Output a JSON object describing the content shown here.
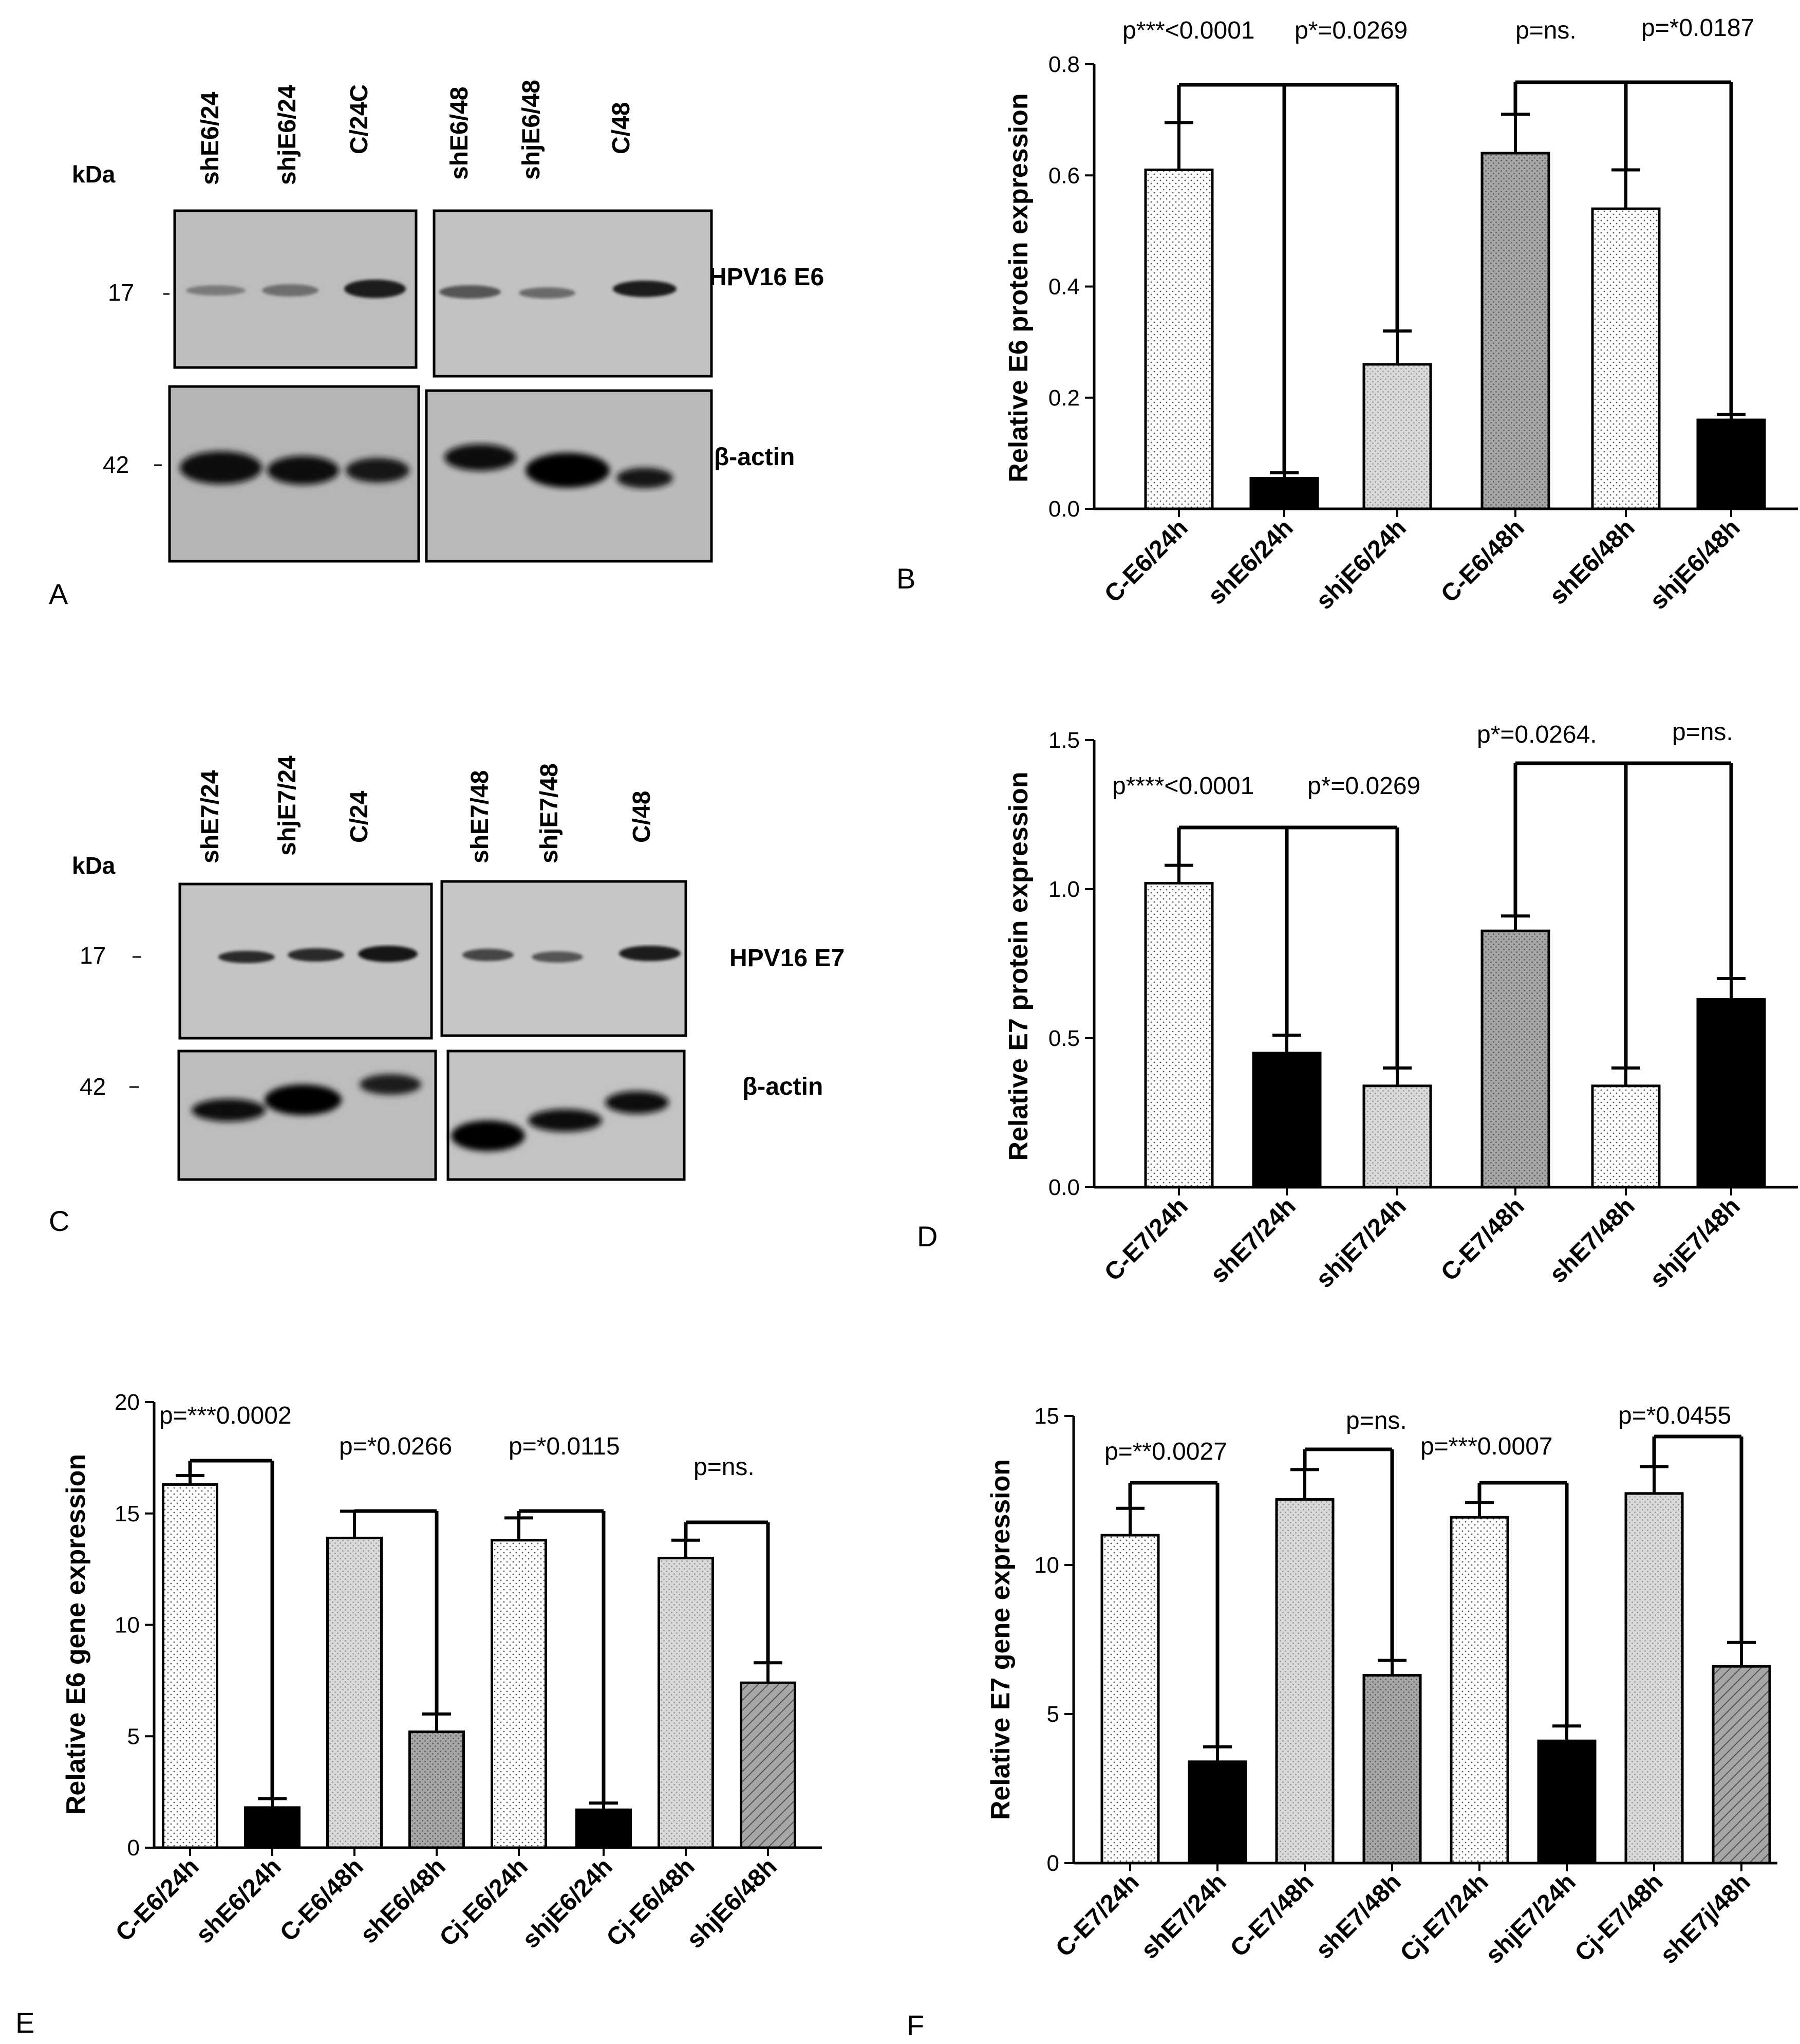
{
  "panel_labels": {
    "A": "A",
    "B": "B",
    "C": "C",
    "D": "D",
    "E": "E",
    "F": "F"
  },
  "blot_A": {
    "kda_label": "kDa",
    "lanes_left": [
      "shE6/24",
      "shjE6/24",
      "C/24C"
    ],
    "lanes_right": [
      "shE6/48",
      "shjE6/48",
      "C/48"
    ],
    "mw_top": "17",
    "mw_bottom": "42",
    "protein_top": "HPV16 E6",
    "protein_bottom": "β-actin"
  },
  "blot_C": {
    "kda_label": "kDa",
    "lanes_left": [
      "shE7/24",
      "shjE7/24",
      "C/24"
    ],
    "lanes_right": [
      "shE7/48",
      "shjE7/48",
      "C/48"
    ],
    "mw_top": "17",
    "mw_bottom": "42",
    "protein_top": "HPV16 E7",
    "protein_bottom": "β-actin"
  },
  "colors": {
    "bar_black": "#000000",
    "bar_light": "#d9d9d9",
    "bar_mid": "#a6a6a6",
    "bar_white": "#ffffff",
    "axis": "#000000"
  },
  "chart_data": [
    {
      "id": "B",
      "type": "bar",
      "ylabel": "Relative E6 protein expression",
      "ylim": [
        0,
        0.8
      ],
      "yticks": [
        "0.0",
        "0.2",
        "0.4",
        "0.6",
        "0.8"
      ],
      "ytick_values": [
        0,
        0.2,
        0.4,
        0.6,
        0.8
      ],
      "categories": [
        "C-E6/24h",
        "shE6/24h",
        "shjE6/24h",
        "C-E6/48h",
        "shE6/48h",
        "shjE6/48h"
      ],
      "values": [
        0.61,
        0.055,
        0.26,
        0.64,
        0.54,
        0.16
      ],
      "errors": [
        0.085,
        0.01,
        0.06,
        0.07,
        0.07,
        0.01
      ],
      "fills": [
        "white",
        "black",
        "light",
        "mid",
        "white",
        "black"
      ],
      "annotations": [
        "p***<0.0001",
        "p*=0.0269",
        "p=ns.",
        "p=*0.0187"
      ]
    },
    {
      "id": "D",
      "type": "bar",
      "ylabel": "Relative E7 protein expression",
      "ylim": [
        0,
        1.5
      ],
      "yticks": [
        "0.0",
        "0.5",
        "1.0",
        "1.5"
      ],
      "ytick_values": [
        0,
        0.5,
        1.0,
        1.5
      ],
      "categories": [
        "C-E7/24h",
        "shE7/24h",
        "shjE7/24h",
        "C-E7/48h",
        "shE7/48h",
        "shjE7/48h"
      ],
      "values": [
        1.02,
        0.45,
        0.34,
        0.86,
        0.34,
        0.63
      ],
      "errors": [
        0.06,
        0.06,
        0.06,
        0.05,
        0.06,
        0.07
      ],
      "fills": [
        "white",
        "black",
        "light",
        "mid",
        "white",
        "black"
      ],
      "annotations": [
        "p****<0.0001",
        "p*=0.0269",
        "p*=0.0264.",
        "p=ns."
      ]
    },
    {
      "id": "E",
      "type": "bar",
      "ylabel": "Relative E6 gene expression",
      "ylim": [
        0,
        20
      ],
      "yticks": [
        "0",
        "5",
        "10",
        "15",
        "20"
      ],
      "ytick_values": [
        0,
        5,
        10,
        15,
        20
      ],
      "categories": [
        "C-E6/24h",
        "shE6/24h",
        "C-E6/48h",
        "shE6/48h",
        "Cj-E6/24h",
        "shjE6/24h",
        "Cj-E6/48h",
        "shjE6/48h"
      ],
      "values": [
        16.3,
        1.8,
        13.9,
        5.2,
        13.8,
        1.7,
        13.0,
        7.4
      ],
      "errors": [
        0.4,
        0.4,
        1.2,
        0.8,
        1.0,
        0.3,
        0.8,
        0.9
      ],
      "fills": [
        "white",
        "black",
        "light",
        "mid",
        "white",
        "black",
        "light",
        "mid"
      ],
      "annotations": [
        "p=***0.0002",
        "p=*0.0266",
        "p=*0.0115",
        "p=ns."
      ]
    },
    {
      "id": "F",
      "type": "bar",
      "ylabel": "Relative E7 gene expression",
      "ylim": [
        0,
        15
      ],
      "yticks": [
        "0",
        "5",
        "10",
        "15"
      ],
      "ytick_values": [
        0,
        5,
        10,
        15
      ],
      "categories": [
        "C-E7/24h",
        "shE7/24h",
        "C-E7/48h",
        "shE7/48h",
        "Cj-E7/24h",
        "shjE7/24h",
        "Cj-E7/48h",
        "shE7j/48h"
      ],
      "values": [
        11.0,
        3.4,
        12.2,
        6.3,
        11.6,
        4.1,
        12.4,
        6.6
      ],
      "errors": [
        0.9,
        0.5,
        1.0,
        0.5,
        0.5,
        0.5,
        0.9,
        0.8
      ],
      "fills": [
        "white",
        "black",
        "light",
        "mid",
        "white",
        "black",
        "light",
        "mid"
      ],
      "annotations": [
        "p=**0.0027",
        "p=ns.",
        "p=***0.0007",
        "p=*0.0455"
      ]
    }
  ]
}
